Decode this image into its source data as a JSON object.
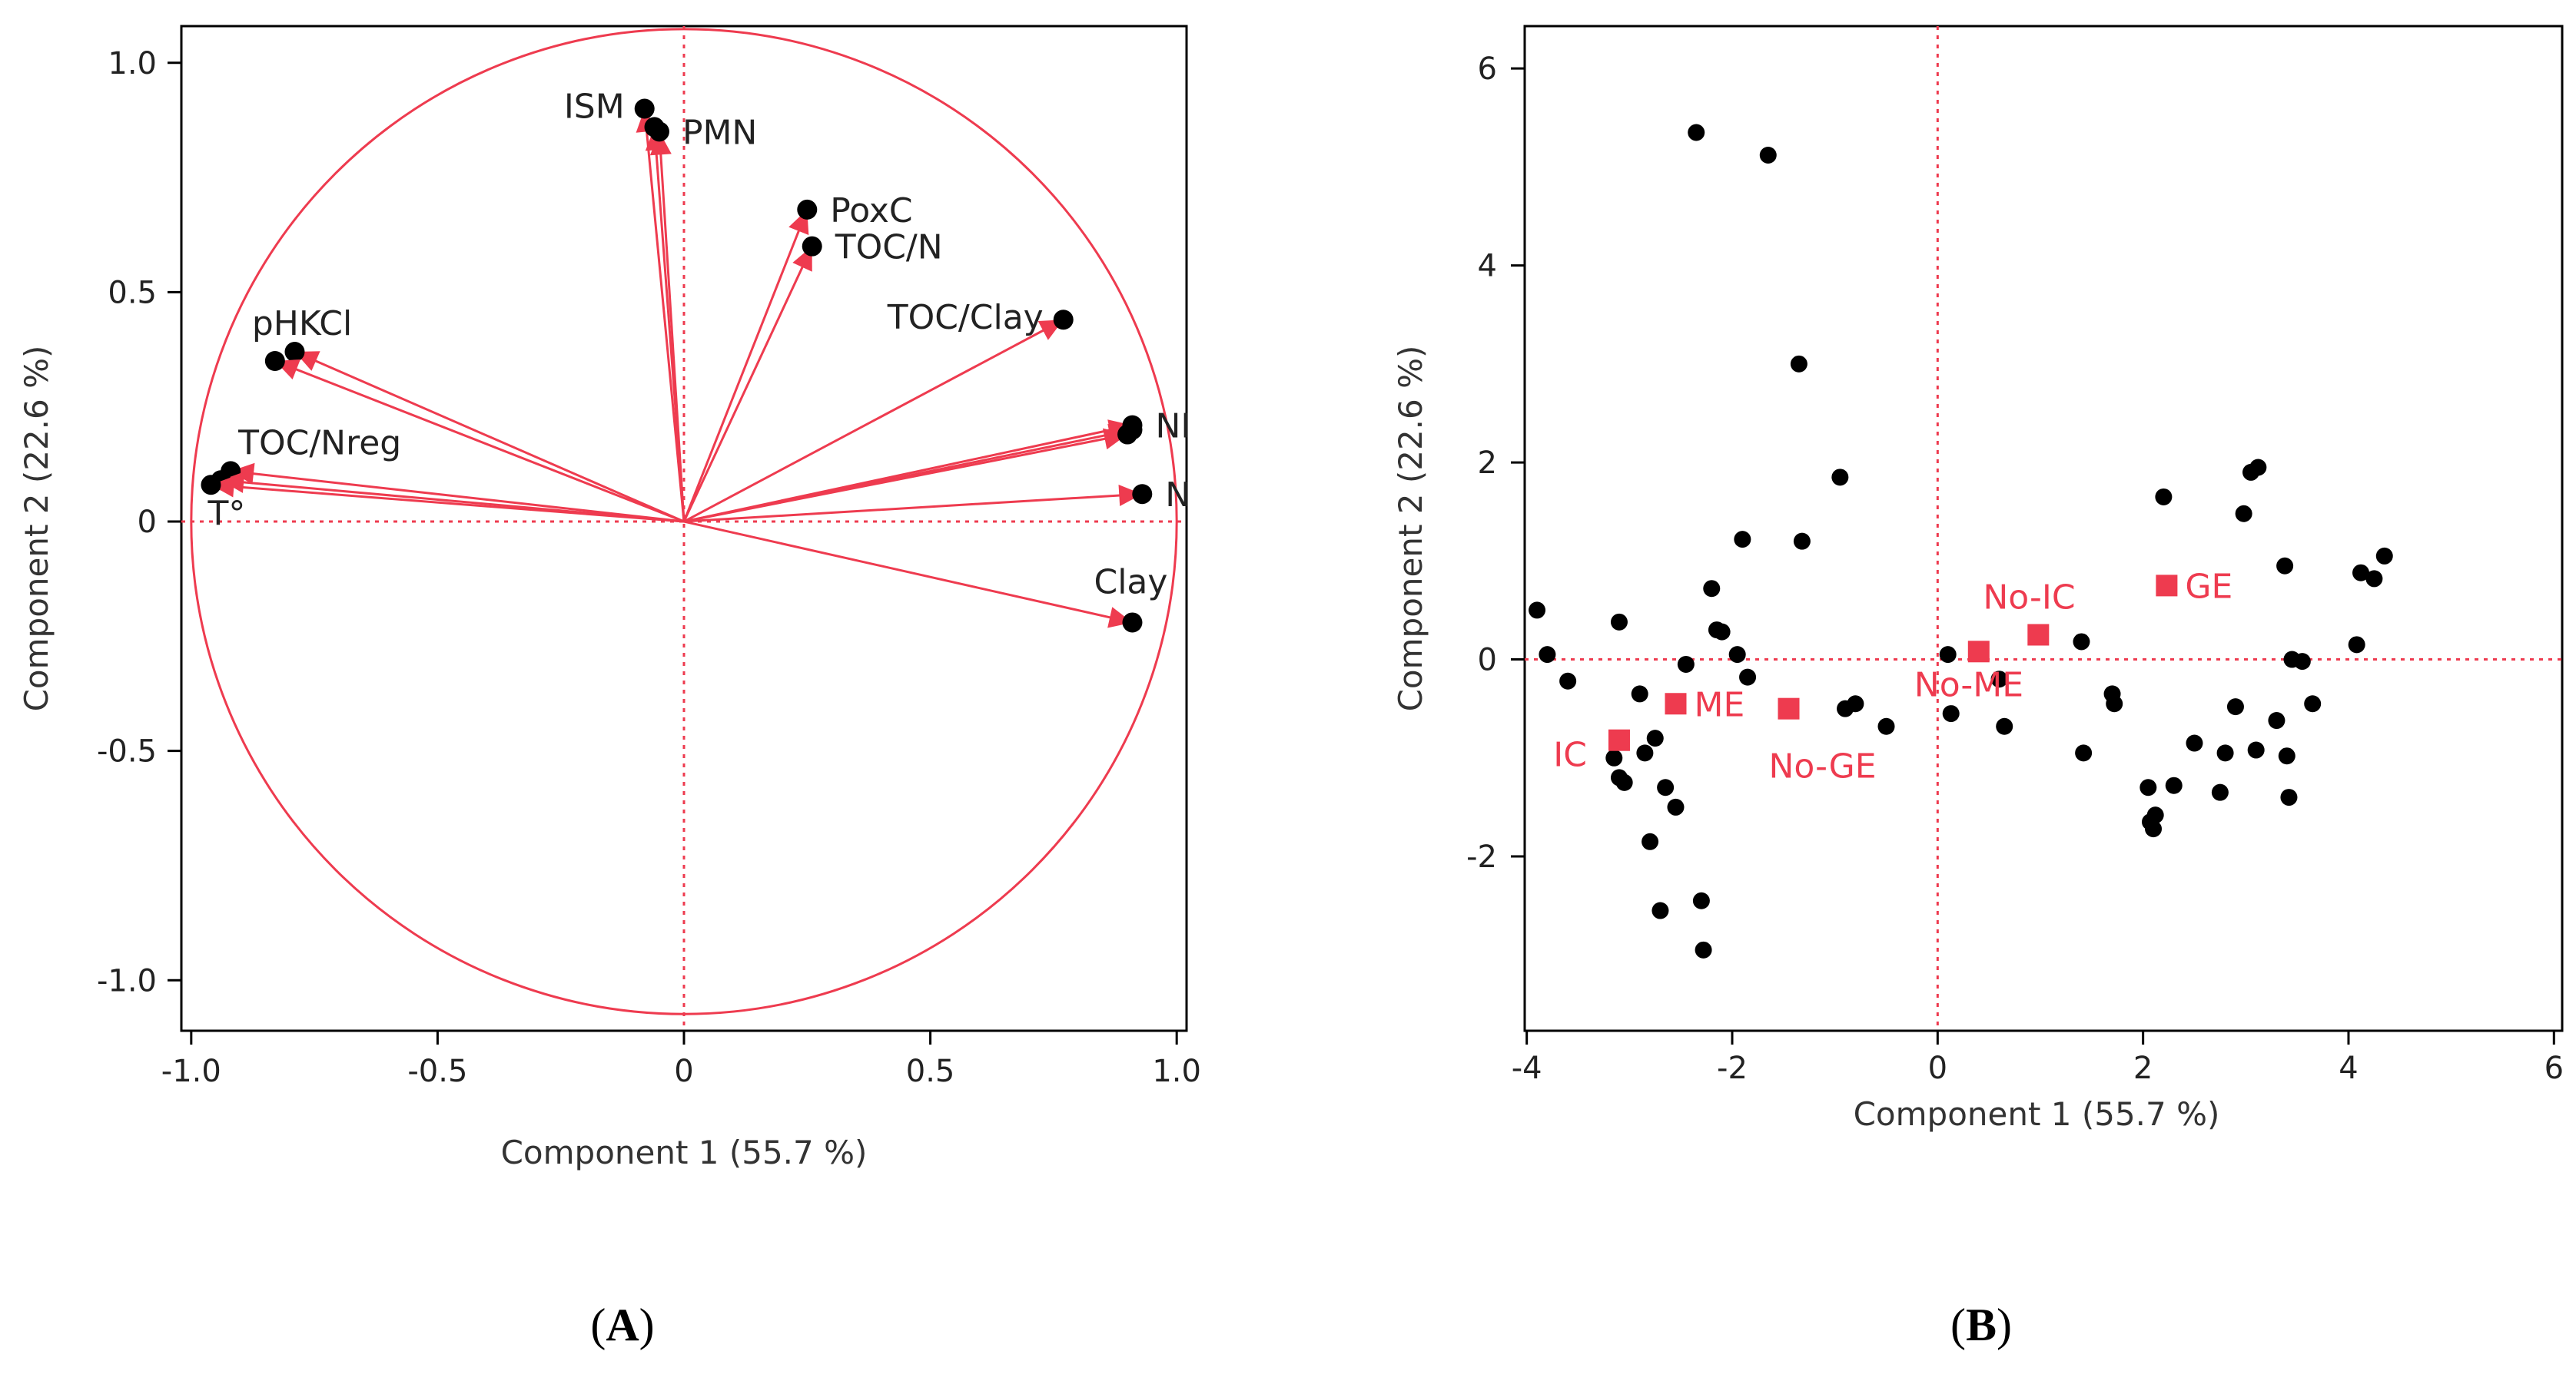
{
  "colors": {
    "accent": "#ee3b4f",
    "point": "#000000",
    "axis": "#333333"
  },
  "panel_labels": {
    "a_open": "(",
    "a": "A",
    "a_close": ")",
    "b_open": "(",
    "b": "B",
    "b_close": ")"
  },
  "chart_data": [
    {
      "type": "scatter",
      "subtype": "pca-loadings",
      "panel": "A",
      "xlabel": "Component 1  (55.7 %)",
      "ylabel": "Component 2  (22.6 %)",
      "xlim": [
        -1.02,
        1.02
      ],
      "ylim": [
        -1.11,
        1.08
      ],
      "xticks": [
        -1.0,
        -0.5,
        0,
        0.5,
        1.0
      ],
      "xtick_labels": [
        "-1.0",
        "-0.5",
        "0",
        "0.5",
        "1.0"
      ],
      "yticks": [
        -1.0,
        -0.5,
        0,
        0.5,
        1.0
      ],
      "ytick_labels": [
        "-1.0",
        "-0.5",
        "0",
        "0.5",
        "1.0"
      ],
      "reference_lines": {
        "x": 0,
        "y": 0
      },
      "unit_circle": true,
      "loadings": [
        {
          "label": "ISM",
          "x": -0.08,
          "y": 0.9,
          "label_pos": "left"
        },
        {
          "label": "",
          "x": -0.06,
          "y": 0.86
        },
        {
          "label": "PMN",
          "x": -0.05,
          "y": 0.85,
          "label_pos": "right"
        },
        {
          "label": "PoxC",
          "x": 0.25,
          "y": 0.68,
          "label_pos": "right"
        },
        {
          "label": "TOC/N",
          "x": 0.26,
          "y": 0.6,
          "label_pos": "right"
        },
        {
          "label": "TOC/Clay",
          "x": 0.77,
          "y": 0.44,
          "label_pos": "left"
        },
        {
          "label": "",
          "x": -0.79,
          "y": 0.37
        },
        {
          "label": "pHKCl",
          "x": -0.83,
          "y": 0.35,
          "label_pos": "above"
        },
        {
          "label": "NI",
          "x": 0.91,
          "y": 0.21,
          "label_pos": "right"
        },
        {
          "label": "",
          "x": 0.91,
          "y": 0.2
        },
        {
          "label": "",
          "x": 0.9,
          "y": 0.19
        },
        {
          "label": "TOC/Nreg",
          "x": -0.92,
          "y": 0.11,
          "label_pos": "right"
        },
        {
          "label": "",
          "x": -0.94,
          "y": 0.09
        },
        {
          "label": "T°",
          "x": -0.96,
          "y": 0.08,
          "label_pos": "below"
        },
        {
          "label": "N",
          "x": 0.93,
          "y": 0.06,
          "label_pos": "right"
        },
        {
          "label": "Clay",
          "x": 0.91,
          "y": -0.22,
          "label_pos": "above"
        }
      ]
    },
    {
      "type": "scatter",
      "subtype": "pca-scores",
      "panel": "B",
      "xlabel": "Component 1  (55.7 %)",
      "ylabel": "Component 2  (22.6 %)",
      "xlim": [
        -4.02,
        6.08
      ],
      "ylim": [
        -3.77,
        6.43
      ],
      "xticks": [
        -4,
        -2,
        0,
        2,
        4,
        6
      ],
      "xtick_labels": [
        "-4",
        "-2",
        "0",
        "2",
        "4",
        "6"
      ],
      "yticks": [
        -2,
        0,
        2,
        4,
        6
      ],
      "ytick_labels": [
        "-2",
        "0",
        "2",
        "4",
        "6"
      ],
      "reference_lines": {
        "x": 0,
        "y": 0
      },
      "points": [
        [
          -3.9,
          0.5
        ],
        [
          -3.8,
          0.05
        ],
        [
          -3.6,
          -0.22
        ],
        [
          -3.1,
          0.38
        ],
        [
          -3.15,
          -1.0
        ],
        [
          -3.1,
          -1.2
        ],
        [
          -3.05,
          -1.25
        ],
        [
          -2.9,
          -0.35
        ],
        [
          -2.85,
          -0.95
        ],
        [
          -2.8,
          -1.85
        ],
        [
          -2.75,
          -0.8
        ],
        [
          -2.7,
          -2.55
        ],
        [
          -2.65,
          -1.3
        ],
        [
          -2.55,
          -1.5
        ],
        [
          -2.45,
          -0.05
        ],
        [
          -2.35,
          5.35
        ],
        [
          -2.3,
          -2.45
        ],
        [
          -2.28,
          -2.95
        ],
        [
          -2.2,
          0.72
        ],
        [
          -2.15,
          0.3
        ],
        [
          -2.1,
          0.28
        ],
        [
          -1.95,
          0.05
        ],
        [
          -1.9,
          1.22
        ],
        [
          -1.85,
          -0.18
        ],
        [
          -1.65,
          5.12
        ],
        [
          -1.35,
          3.0
        ],
        [
          -1.32,
          1.2
        ],
        [
          -0.95,
          1.85
        ],
        [
          -0.9,
          -0.5
        ],
        [
          -0.8,
          -0.45
        ],
        [
          -0.5,
          -0.68
        ],
        [
          0.1,
          0.05
        ],
        [
          0.13,
          -0.55
        ],
        [
          0.6,
          -0.2
        ],
        [
          0.65,
          -0.68
        ],
        [
          1.4,
          0.18
        ],
        [
          1.42,
          -0.95
        ],
        [
          1.7,
          -0.35
        ],
        [
          1.72,
          -0.45
        ],
        [
          2.05,
          -1.3
        ],
        [
          2.07,
          -1.65
        ],
        [
          2.1,
          -1.72
        ],
        [
          2.12,
          -1.58
        ],
        [
          2.2,
          1.65
        ],
        [
          2.3,
          -1.28
        ],
        [
          2.5,
          -0.85
        ],
        [
          2.75,
          -1.35
        ],
        [
          2.8,
          -0.95
        ],
        [
          2.9,
          -0.48
        ],
        [
          2.98,
          1.48
        ],
        [
          3.05,
          1.9
        ],
        [
          3.1,
          -0.92
        ],
        [
          3.12,
          1.95
        ],
        [
          3.3,
          -0.62
        ],
        [
          3.38,
          0.95
        ],
        [
          3.4,
          -0.98
        ],
        [
          3.42,
          -1.4
        ],
        [
          3.45,
          0.0
        ],
        [
          3.55,
          -0.02
        ],
        [
          3.65,
          -0.45
        ],
        [
          4.08,
          0.15
        ],
        [
          4.12,
          0.88
        ],
        [
          4.25,
          0.82
        ],
        [
          4.35,
          1.05
        ]
      ],
      "groups": [
        {
          "label": "IC",
          "x": -3.1,
          "y": -0.82,
          "label_pos": "left"
        },
        {
          "label": "ME",
          "x": -2.55,
          "y": -0.45,
          "label_pos": "right"
        },
        {
          "label": "No-GE",
          "x": -1.45,
          "y": -0.5,
          "label_pos": "below"
        },
        {
          "label": "No-ME",
          "x": 0.4,
          "y": 0.08,
          "label_pos": "below"
        },
        {
          "label": "No-IC",
          "x": 0.98,
          "y": 0.25,
          "label_pos": "above"
        },
        {
          "label": "GE",
          "x": 2.23,
          "y": 0.75,
          "label_pos": "right"
        }
      ]
    }
  ]
}
